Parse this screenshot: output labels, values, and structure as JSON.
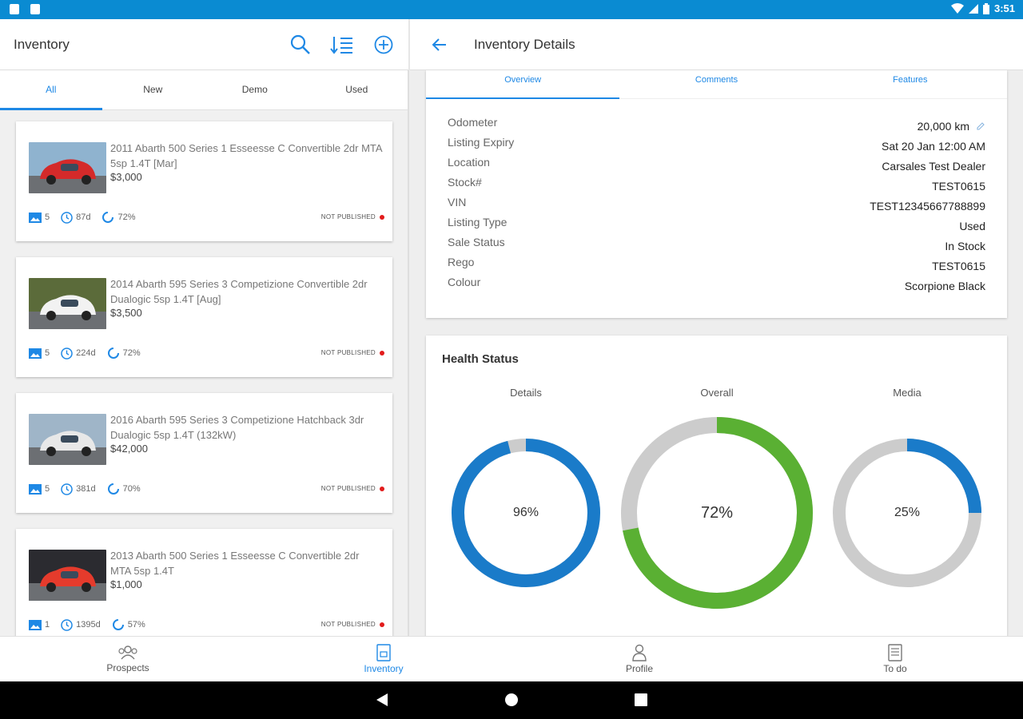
{
  "status_bar": {
    "time": "3:51"
  },
  "left_header": {
    "title": "Inventory"
  },
  "right_header": {
    "title": "Inventory Details"
  },
  "filter_tabs": [
    {
      "label": "All",
      "active": true
    },
    {
      "label": "New",
      "active": false
    },
    {
      "label": "Demo",
      "active": false
    },
    {
      "label": "Used",
      "active": false
    }
  ],
  "inventory": [
    {
      "title": "2011 Abarth 500 Series 1 Esseesse C Convertible 2dr MTA 5sp 1.4T [Mar]",
      "price": "$3,000",
      "photos": "5",
      "age": "87d",
      "health": "72%",
      "status": "NOT PUBLISHED",
      "car_color": "#d42a2a",
      "bg": "#8fb3cf"
    },
    {
      "title": "2014 Abarth 595 Series 3 Competizione Convertible 2dr Dualogic 5sp 1.4T [Aug]",
      "price": "$3,500",
      "photos": "5",
      "age": "224d",
      "health": "72%",
      "status": "NOT PUBLISHED",
      "car_color": "#f2f2f2",
      "bg": "#5b6b3a"
    },
    {
      "title": "2016 Abarth 595 Series 3 Competizione Hatchback 3dr Dualogic 5sp 1.4T (132kW)",
      "price": "$42,000",
      "photos": "5",
      "age": "381d",
      "health": "70%",
      "status": "NOT PUBLISHED",
      "car_color": "#e8e8e8",
      "bg": "#9fb5c8"
    },
    {
      "title": "2013 Abarth 500 Series 1 Esseesse C Convertible 2dr MTA 5sp 1.4T",
      "price": "$1,000",
      "photos": "1",
      "age": "1395d",
      "health": "57%",
      "status": "NOT PUBLISHED",
      "car_color": "#e53b2c",
      "bg": "#2b2b30"
    }
  ],
  "detail_tabs": [
    {
      "label": "Overview",
      "active": true
    },
    {
      "label": "Comments",
      "active": false
    },
    {
      "label": "Features",
      "active": false
    }
  ],
  "details": [
    {
      "label": "Odometer",
      "value": "20,000 km",
      "editable": true
    },
    {
      "label": "Listing Expiry",
      "value": "Sat 20 Jan 12:00 AM"
    },
    {
      "label": "Location",
      "value": "Carsales Test Dealer"
    },
    {
      "label": "Stock#",
      "value": "TEST0615"
    },
    {
      "label": "VIN",
      "value": "TEST12345667788899"
    },
    {
      "label": "Listing Type",
      "value": "Used"
    },
    {
      "label": "Sale Status",
      "value": "In Stock"
    },
    {
      "label": "Rego",
      "value": "TEST0615"
    },
    {
      "label": "Colour",
      "value": "Scorpione Black"
    }
  ],
  "health": {
    "title": "Health Status",
    "gauges": [
      {
        "label": "Details",
        "value": 96,
        "text": "96%",
        "color": "#1a7bc9"
      },
      {
        "label": "Overall",
        "value": 72,
        "text": "72%",
        "color": "#5ab033"
      },
      {
        "label": "Media",
        "value": 25,
        "text": "25%",
        "color": "#1a7bc9"
      }
    ],
    "track_color": "#cccccc"
  },
  "bottom_nav": [
    {
      "label": "Prospects",
      "icon": "prospects-icon",
      "active": false
    },
    {
      "label": "Inventory",
      "icon": "inventory-icon",
      "active": true
    },
    {
      "label": "Profile",
      "icon": "profile-icon",
      "active": false
    },
    {
      "label": "To do",
      "icon": "todo-icon",
      "active": false
    }
  ]
}
